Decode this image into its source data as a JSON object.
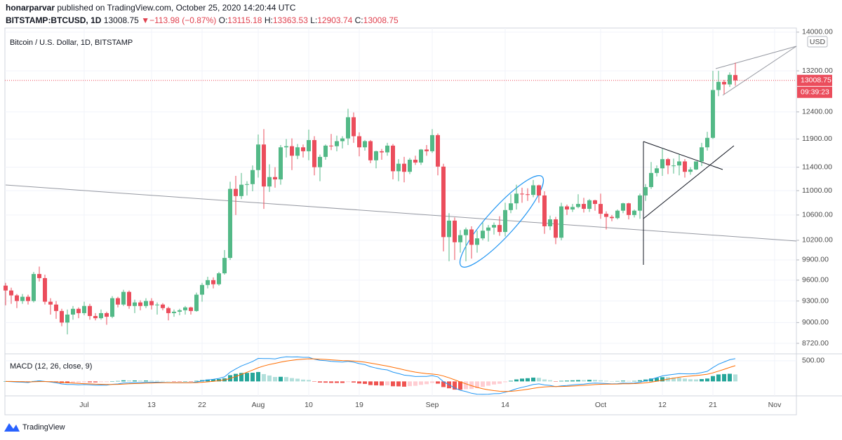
{
  "header": {
    "user": "honarparvar",
    "published": "published on TradingView.com, October 25, 2020 14:20:44 UTC",
    "symbol": "BITSTAMP:BTCUSD, 1D",
    "price": "13008.75",
    "arrow": "▼",
    "change": "−113.98 (−0.87%)",
    "o_label": "O:",
    "o_value": "13115.18",
    "h_label": "H:",
    "h_value": "13363.53",
    "l_label": "L:",
    "l_value": "12903.74",
    "c_label": "C:",
    "c_value": "13008.75",
    "price_tag": "13008.75",
    "countdown": "09:39:23",
    "currency": "USD"
  },
  "footer": {
    "brand": "TradingView"
  },
  "chart_data": {
    "type": "candlestick",
    "title": "Bitcoin / U.S. Dollar, 1D, BITSTAMP",
    "log": true,
    "grid": true,
    "up_color": "#53b987",
    "down_color": "#eb4d5c",
    "ylim": [
      8582,
      14088
    ],
    "yticks": [
      {
        "value": 8720,
        "label": "8720.00"
      },
      {
        "value": 9000,
        "label": "9000.00"
      },
      {
        "value": 9300,
        "label": "9300.00"
      },
      {
        "value": 9600,
        "label": "9600.00"
      },
      {
        "value": 9900,
        "label": "9900.00"
      },
      {
        "value": 10200,
        "label": "10200.00"
      },
      {
        "value": 10600,
        "label": "10600.00"
      },
      {
        "value": 11000,
        "label": "11000.00"
      },
      {
        "value": 11400,
        "label": "11400.00"
      },
      {
        "value": 11900,
        "label": "11900.00"
      },
      {
        "value": 12400,
        "label": "12400.00"
      },
      {
        "value": 13200,
        "label": "13200.00"
      },
      {
        "value": 14000,
        "label": "14000.00"
      }
    ],
    "xticks": [
      {
        "value": 14,
        "label": "Jul"
      },
      {
        "value": 26,
        "label": "13"
      },
      {
        "value": 35,
        "label": "22"
      },
      {
        "value": 45,
        "label": "Aug"
      },
      {
        "value": 54,
        "label": "10"
      },
      {
        "value": 63,
        "label": "19"
      },
      {
        "value": 76,
        "label": "Sep"
      },
      {
        "value": 89,
        "label": "14"
      },
      {
        "value": 106,
        "label": "Oct"
      },
      {
        "value": 117,
        "label": "12"
      },
      {
        "value": 126,
        "label": "21"
      },
      {
        "value": 137,
        "label": "Nov"
      }
    ],
    "candles": [
      [
        9520,
        9560,
        9240,
        9450
      ],
      [
        9450,
        9490,
        9260,
        9380
      ],
      [
        9380,
        9400,
        9200,
        9300
      ],
      [
        9300,
        9400,
        9260,
        9360
      ],
      [
        9360,
        9390,
        9250,
        9300
      ],
      [
        9300,
        9720,
        9280,
        9690
      ],
      [
        9690,
        9800,
        9580,
        9630
      ],
      [
        9630,
        9680,
        9250,
        9290
      ],
      [
        9290,
        9340,
        9110,
        9250
      ],
      [
        9250,
        9300,
        9050,
        9160
      ],
      [
        9160,
        9190,
        8950,
        9000
      ],
      [
        9000,
        9180,
        8840,
        9110
      ],
      [
        9110,
        9230,
        9040,
        9190
      ],
      [
        9190,
        9210,
        9060,
        9130
      ],
      [
        9130,
        9290,
        9100,
        9230
      ],
      [
        9230,
        9260,
        9040,
        9090
      ],
      [
        9090,
        9130,
        9030,
        9060
      ],
      [
        9060,
        9180,
        9040,
        9130
      ],
      [
        9130,
        9150,
        8970,
        9080
      ],
      [
        9080,
        9370,
        9060,
        9340
      ],
      [
        9340,
        9360,
        9210,
        9250
      ],
      [
        9250,
        9460,
        9230,
        9430
      ],
      [
        9430,
        9450,
        9190,
        9230
      ],
      [
        9230,
        9320,
        9130,
        9280
      ],
      [
        9280,
        9310,
        9170,
        9230
      ],
      [
        9230,
        9340,
        9200,
        9300
      ],
      [
        9300,
        9340,
        9180,
        9240
      ],
      [
        9240,
        9280,
        9110,
        9250
      ],
      [
        9250,
        9270,
        9170,
        9200
      ],
      [
        9200,
        9220,
        9030,
        9130
      ],
      [
        9130,
        9180,
        9080,
        9150
      ],
      [
        9150,
        9190,
        9100,
        9170
      ],
      [
        9170,
        9230,
        9110,
        9210
      ],
      [
        9210,
        9220,
        9110,
        9160
      ],
      [
        9160,
        9420,
        9150,
        9390
      ],
      [
        9390,
        9560,
        9290,
        9530
      ],
      [
        9530,
        9650,
        9480,
        9600
      ],
      [
        9600,
        9640,
        9480,
        9540
      ],
      [
        9540,
        9720,
        9520,
        9700
      ],
      [
        9700,
        10050,
        9680,
        9930
      ],
      [
        9930,
        11150,
        9900,
        11030
      ],
      [
        11030,
        11250,
        10600,
        10910
      ],
      [
        10910,
        11300,
        10860,
        11100
      ],
      [
        11100,
        11160,
        10920,
        11110
      ],
      [
        11110,
        11430,
        10990,
        11350
      ],
      [
        11350,
        11980,
        11220,
        11800
      ],
      [
        11800,
        12080,
        10700,
        11070
      ],
      [
        11070,
        11450,
        10980,
        11230
      ],
      [
        11230,
        11400,
        11050,
        11190
      ],
      [
        11190,
        11790,
        11100,
        11750
      ],
      [
        11750,
        11900,
        11570,
        11770
      ],
      [
        11770,
        11910,
        11350,
        11600
      ],
      [
        11600,
        11810,
        11540,
        11750
      ],
      [
        11750,
        11800,
        11570,
        11680
      ],
      [
        11680,
        12070,
        11520,
        11880
      ],
      [
        11880,
        11950,
        11260,
        11400
      ],
      [
        11400,
        11620,
        11160,
        11580
      ],
      [
        11580,
        11800,
        11530,
        11780
      ],
      [
        11780,
        11990,
        11700,
        11770
      ],
      [
        11770,
        11960,
        11680,
        11860
      ],
      [
        11860,
        11950,
        11730,
        11910
      ],
      [
        11910,
        12460,
        11790,
        12300
      ],
      [
        12300,
        12390,
        11830,
        11950
      ],
      [
        11950,
        12020,
        11590,
        11750
      ],
      [
        11750,
        11880,
        11690,
        11860
      ],
      [
        11860,
        11880,
        11470,
        11520
      ],
      [
        11520,
        11690,
        11380,
        11680
      ],
      [
        11680,
        11720,
        11530,
        11660
      ],
      [
        11660,
        11830,
        11600,
        11780
      ],
      [
        11780,
        11810,
        11190,
        11330
      ],
      [
        11330,
        11540,
        11160,
        11460
      ],
      [
        11460,
        11580,
        11140,
        11320
      ],
      [
        11320,
        11560,
        11280,
        11530
      ],
      [
        11530,
        11600,
        11440,
        11480
      ],
      [
        11480,
        11720,
        11440,
        11710
      ],
      [
        11710,
        11790,
        11600,
        11680
      ],
      [
        11680,
        12080,
        11650,
        11970
      ],
      [
        11970,
        12000,
        11260,
        11410
      ],
      [
        11410,
        11460,
        10030,
        10250
      ],
      [
        10250,
        10630,
        9880,
        10510
      ],
      [
        10510,
        10560,
        9900,
        10170
      ],
      [
        10170,
        10360,
        10010,
        10280
      ],
      [
        10280,
        10400,
        9880,
        10370
      ],
      [
        10370,
        10420,
        9920,
        10130
      ],
      [
        10130,
        10350,
        10010,
        10230
      ],
      [
        10230,
        10480,
        10200,
        10350
      ],
      [
        10350,
        10440,
        10180,
        10400
      ],
      [
        10400,
        10480,
        10290,
        10440
      ],
      [
        10440,
        10580,
        10270,
        10330
      ],
      [
        10330,
        10800,
        10260,
        10680
      ],
      [
        10680,
        10940,
        10630,
        10790
      ],
      [
        10790,
        11100,
        10690,
        10950
      ],
      [
        10950,
        11050,
        10800,
        10940
      ],
      [
        10940,
        11040,
        10830,
        10930
      ],
      [
        10930,
        11180,
        10890,
        11090
      ],
      [
        11090,
        11100,
        10800,
        10920
      ],
      [
        10920,
        10990,
        10300,
        10420
      ],
      [
        10420,
        10590,
        10360,
        10530
      ],
      [
        10530,
        10570,
        10140,
        10240
      ],
      [
        10240,
        10800,
        10200,
        10740
      ],
      [
        10740,
        10770,
        10600,
        10690
      ],
      [
        10690,
        10780,
        10650,
        10730
      ],
      [
        10730,
        10940,
        10710,
        10780
      ],
      [
        10780,
        10880,
        10640,
        10700
      ],
      [
        10700,
        10860,
        10650,
        10840
      ],
      [
        10840,
        10850,
        10670,
        10780
      ],
      [
        10780,
        10950,
        10540,
        10620
      ],
      [
        10620,
        10660,
        10370,
        10570
      ],
      [
        10570,
        10600,
        10500,
        10550
      ],
      [
        10550,
        10690,
        10530,
        10670
      ],
      [
        10670,
        10800,
        10630,
        10790
      ],
      [
        10790,
        10800,
        10530,
        10600
      ],
      [
        10600,
        10690,
        10560,
        10670
      ],
      [
        10670,
        10950,
        10540,
        10920
      ],
      [
        10920,
        11110,
        10830,
        11060
      ],
      [
        11060,
        11490,
        11030,
        11300
      ],
      [
        11300,
        11430,
        11240,
        11380
      ],
      [
        11380,
        11720,
        11250,
        11540
      ],
      [
        11540,
        11560,
        11280,
        11430
      ],
      [
        11430,
        11550,
        11290,
        11430
      ],
      [
        11430,
        11620,
        11260,
        11500
      ],
      [
        11500,
        11540,
        11220,
        11320
      ],
      [
        11320,
        11400,
        11270,
        11360
      ],
      [
        11360,
        11490,
        11350,
        11500
      ],
      [
        11500,
        11830,
        11420,
        11750
      ],
      [
        11750,
        12030,
        11690,
        11920
      ],
      [
        11920,
        13200,
        11900,
        12820
      ],
      [
        12820,
        13200,
        12700,
        12980
      ],
      [
        12980,
        13020,
        12740,
        12930
      ],
      [
        12930,
        13170,
        12880,
        13120
      ],
      [
        13115.18,
        13363.53,
        12903.74,
        13008.75
      ]
    ],
    "macd": {
      "title": "MACD (12, 26, close, 9)",
      "fast": 12,
      "slow": 26,
      "signal": 9,
      "macd_color": "#2196f3",
      "signal_color": "#ff6d00",
      "ylim": [
        -350,
        617
      ],
      "yticks": [
        {
          "value": 500,
          "label": "500.00"
        }
      ]
    }
  }
}
